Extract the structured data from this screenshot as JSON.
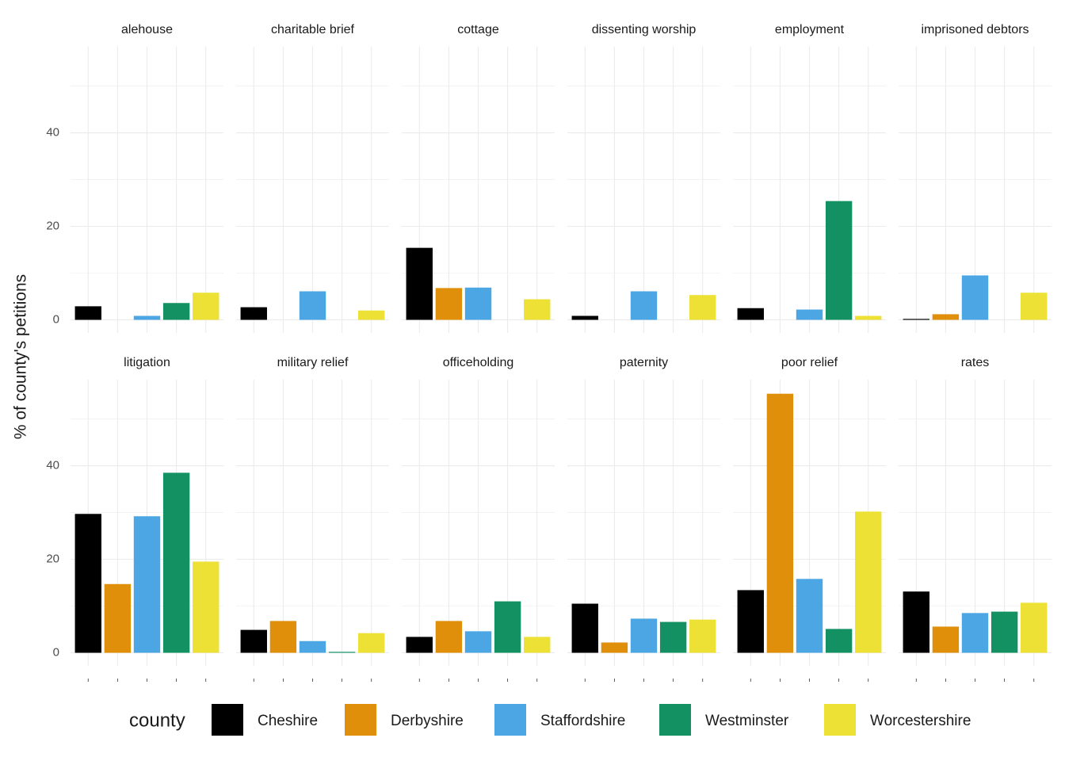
{
  "chart_data": {
    "type": "bar",
    "y_label": "% of county's petitions",
    "legend_title": "county",
    "categories": [
      "alehouse",
      "charitable brief",
      "cottage",
      "dissenting worship",
      "employment",
      "imprisoned debtors",
      "litigation",
      "military relief",
      "officeholding",
      "paternity",
      "poor relief",
      "rates"
    ],
    "series": [
      {
        "name": "Cheshire",
        "color": "#000000",
        "values": [
          2.9,
          2.7,
          15.4,
          0.85,
          2.5,
          0.2,
          29.7,
          4.9,
          3.4,
          10.5,
          13.4,
          13.1
        ]
      },
      {
        "name": "Derbyshire",
        "color": "#e08f0b",
        "values": [
          null,
          null,
          6.8,
          null,
          null,
          1.2,
          14.7,
          6.8,
          6.8,
          2.2,
          55.4,
          5.6
        ]
      },
      {
        "name": "Staffordshire",
        "color": "#4ba6e3",
        "values": [
          0.85,
          6.1,
          6.9,
          6.1,
          2.2,
          9.5,
          29.2,
          2.5,
          4.6,
          7.3,
          15.8,
          8.5
        ]
      },
      {
        "name": "Westminster",
        "color": "#139163",
        "values": [
          3.6,
          null,
          null,
          null,
          25.4,
          null,
          38.5,
          0.2,
          11.0,
          6.6,
          5.1,
          8.8
        ]
      },
      {
        "name": "Worcestershire",
        "color": "#ece134",
        "values": [
          5.8,
          2.0,
          4.4,
          5.3,
          0.85,
          5.8,
          19.5,
          4.2,
          3.4,
          7.1,
          30.2,
          10.7
        ]
      }
    ],
    "ylim": [
      -2.8,
      58.4
    ],
    "yticks": [
      0,
      20,
      40
    ],
    "grid": true,
    "legend_position": "bottom"
  }
}
